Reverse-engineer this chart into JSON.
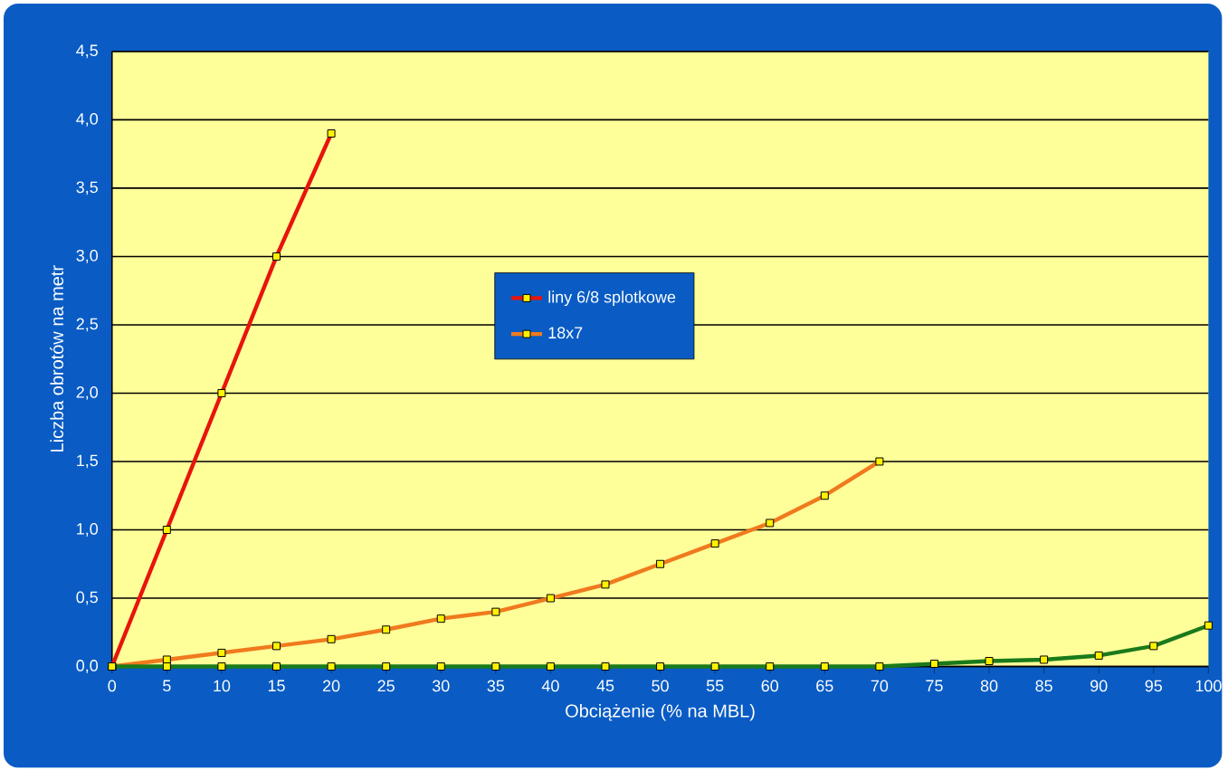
{
  "chart_data": {
    "type": "line",
    "xlabel": "Obciążenie (% na MBL)",
    "ylabel": "Liczba obrotów na metr",
    "x": [
      0,
      5,
      10,
      15,
      20,
      25,
      30,
      35,
      40,
      45,
      50,
      55,
      60,
      65,
      70,
      75,
      80,
      85,
      90,
      95,
      100
    ],
    "series": [
      {
        "name": "liny 6/8 splotkowe",
        "color": "#e8140c",
        "x": [
          0,
          5,
          10,
          15,
          20
        ],
        "values": [
          0,
          1.0,
          2.0,
          3.0,
          3.9
        ]
      },
      {
        "name": "18x7",
        "color": "#f07a1e",
        "x": [
          0,
          5,
          10,
          15,
          20,
          25,
          30,
          35,
          40,
          45,
          50,
          55,
          60,
          65,
          70
        ],
        "values": [
          0,
          0.05,
          0.1,
          0.15,
          0.2,
          0.27,
          0.35,
          0.4,
          0.5,
          0.6,
          0.75,
          0.9,
          1.05,
          1.25,
          1.5
        ]
      },
      {
        "color": "#1a7a1a",
        "values": [
          0,
          0,
          0,
          0,
          0,
          0,
          0,
          0,
          0,
          0,
          0,
          0,
          0,
          0,
          0,
          0.02,
          0.04,
          0.05,
          0.08,
          0.15,
          0.3
        ]
      }
    ],
    "xlim": [
      0,
      100
    ],
    "xticks": [
      0,
      5,
      10,
      15,
      20,
      25,
      30,
      35,
      40,
      45,
      50,
      55,
      60,
      65,
      70,
      75,
      80,
      85,
      90,
      95,
      100
    ],
    "ylim": [
      0,
      4.5
    ],
    "yticks": [
      {
        "value": 0,
        "label": "0,0"
      },
      {
        "value": 0.5,
        "label": "0,5"
      },
      {
        "value": 1,
        "label": "1,0"
      },
      {
        "value": 1.5,
        "label": "1,5"
      },
      {
        "value": 2,
        "label": "2,0"
      },
      {
        "value": 2.5,
        "label": "2,5"
      },
      {
        "value": 3,
        "label": "3,0"
      },
      {
        "value": 3.5,
        "label": "3,5"
      },
      {
        "value": 4,
        "label": "4,0"
      },
      {
        "value": 4.5,
        "label": "4,5"
      }
    ],
    "grid": "y",
    "legend": "center",
    "marker": "square",
    "line_style": "solid"
  }
}
